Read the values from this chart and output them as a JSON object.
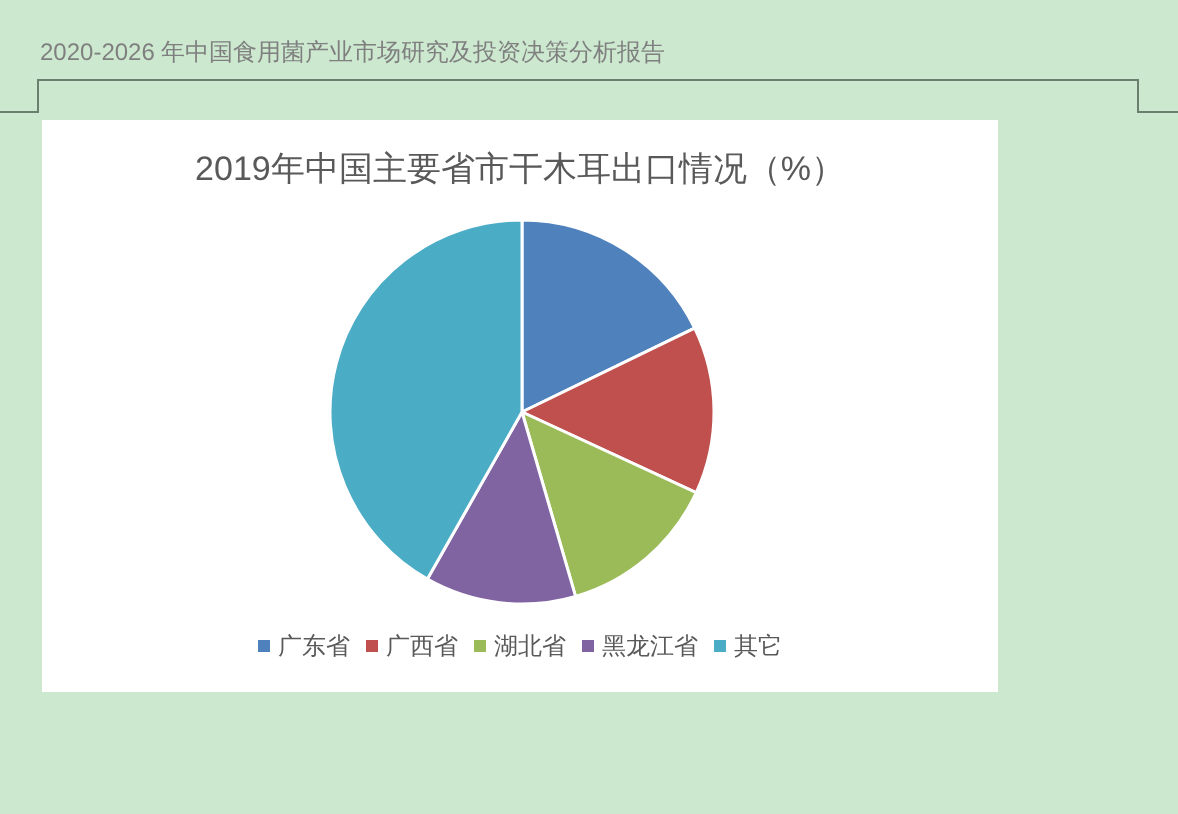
{
  "chart_data": {
    "type": "pie",
    "title": "2019年中国主要省市干木耳出口情况（%）",
    "categories": [
      "广东省",
      "广西省",
      "湖北省",
      "黑龙江省",
      "其它"
    ],
    "values": [
      17.8,
      14.1,
      13.6,
      12.7,
      41.8
    ],
    "colors": [
      "#4f81bd",
      "#c0504d",
      "#9bbb59",
      "#8064a2",
      "#4bacc6"
    ],
    "legend": "bottom",
    "annotations": [
      "2020-2026 年中国食用菌产业市场研究及投资决策分析报告"
    ]
  }
}
